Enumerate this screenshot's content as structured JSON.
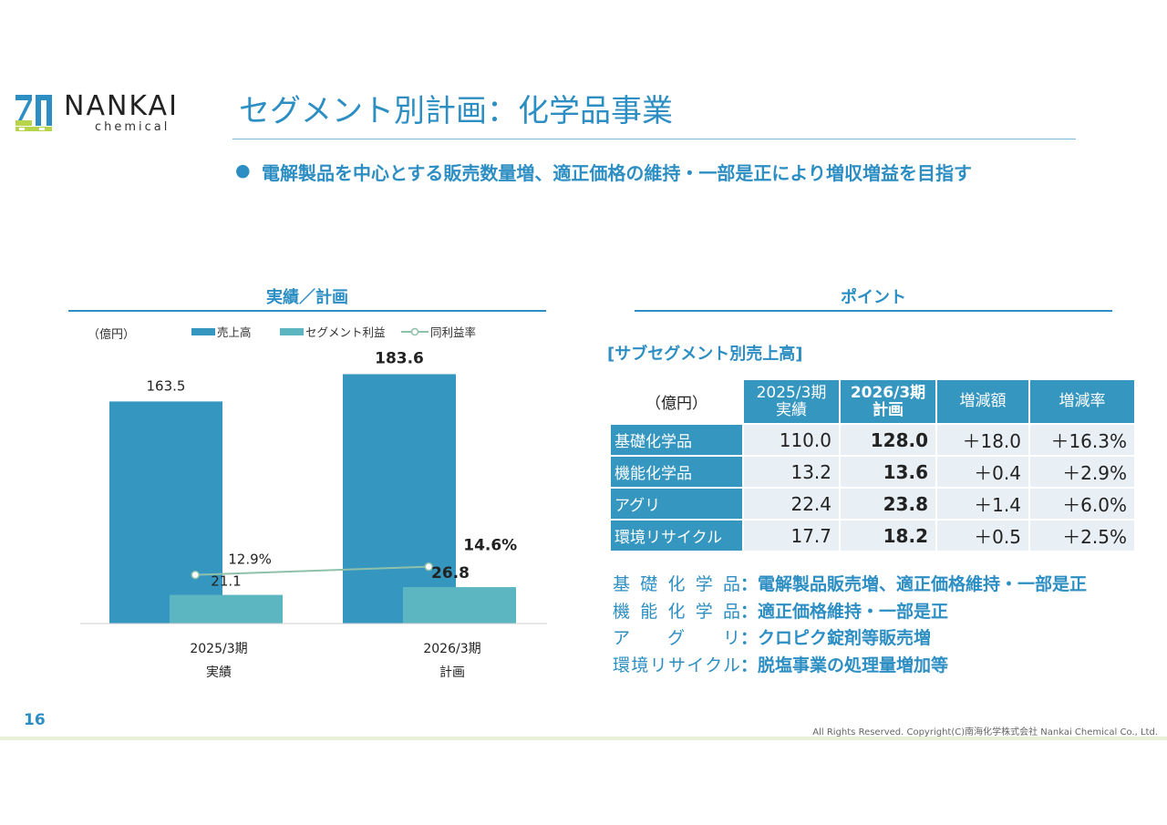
{
  "brand": {
    "name": "NANKAI",
    "sub": "chemical",
    "colors": {
      "accent": "#2c8ec2",
      "bar_sales": "#3596c0",
      "bar_profit": "#5bb6c1",
      "line_margin": "#8fc1aa",
      "logo_green": "#b7d44a"
    }
  },
  "page": {
    "title": "セグメント別計画：化学品事業",
    "bullet": "●",
    "headline": "電解製品を中心とする販売数量増、適正価格の維持・一部是正により増収増益を目指す",
    "number": "16",
    "copyright": "All Rights Reserved. Copyright(C)南海化学株式会社 Nankai Chemical Co., Ltd."
  },
  "chart_section": {
    "title": "実績／計画"
  },
  "chart_data": {
    "type": "bar",
    "unit_label": "（億円）",
    "categories": [
      "2025/3期",
      "2026/3期"
    ],
    "category_sublabels": [
      "実績",
      "計画"
    ],
    "series": [
      {
        "name": "売上高",
        "values": [
          163.5,
          183.6
        ],
        "labels": [
          "163.5",
          "183.6"
        ],
        "color": "#3596c0"
      },
      {
        "name": "セグメント利益",
        "values": [
          21.1,
          26.8
        ],
        "labels": [
          "21.1",
          "26.8"
        ],
        "color": "#5bb6c1"
      },
      {
        "name": "同利益率",
        "type": "line",
        "values": [
          12.9,
          14.6
        ],
        "labels": [
          "12.9%",
          "14.6%"
        ],
        "color": "#8fc1aa"
      }
    ],
    "emphasis_category": 1,
    "legend": "top",
    "grid": false
  },
  "point_section": {
    "title": "ポイント",
    "table_title": "[サブセグメント別売上高]",
    "unit": "（億円）",
    "columns": [
      "2025/3期\n実績",
      "2026/3期\n計画",
      "増減額",
      "増減率"
    ],
    "rows": [
      {
        "label": "基礎化学品",
        "values": [
          "110.0",
          "128.0",
          "＋18.0",
          "＋16.3%"
        ]
      },
      {
        "label": "機能化学品",
        "values": [
          "13.2",
          "13.6",
          "＋0.4",
          "＋2.9%"
        ]
      },
      {
        "label": "アグリ",
        "values": [
          "22.4",
          "23.8",
          "＋1.4",
          "＋6.0%"
        ]
      },
      {
        "label": "環境リサイクル",
        "values": [
          "17.7",
          "18.2",
          "＋0.5",
          "＋2.5%"
        ]
      }
    ],
    "notes": [
      {
        "label": "基礎化学品",
        "text": "電解製品販売増、適正価格維持・一部是正"
      },
      {
        "label": "機能化学品",
        "text": "適正価格維持・一部是正"
      },
      {
        "label": "アグリ",
        "text": "クロピク錠剤等販売増"
      },
      {
        "label": "環境リサイクル",
        "text": "脱塩事業の処理量増加等"
      }
    ],
    "colon": "："
  }
}
